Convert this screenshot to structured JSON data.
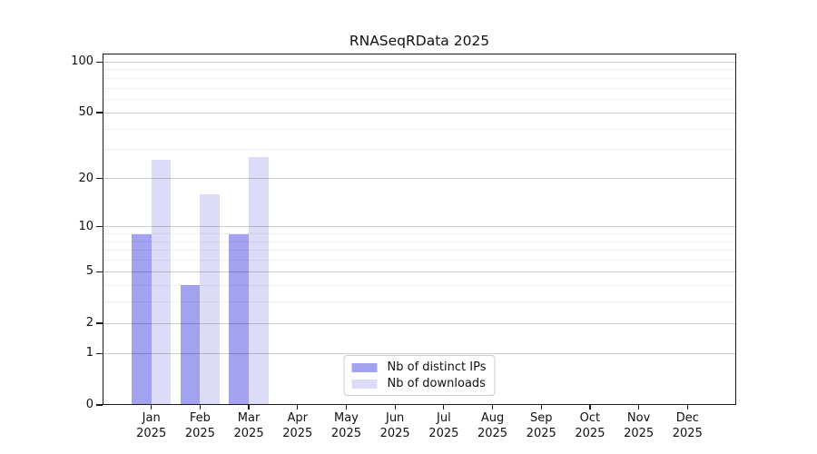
{
  "title": "RNASeqRData 2025",
  "chart_data": {
    "type": "bar",
    "title": "RNASeqRData 2025",
    "xlabel": "",
    "ylabel": "",
    "categories": [
      {
        "month": "Jan",
        "year": "2025"
      },
      {
        "month": "Feb",
        "year": "2025"
      },
      {
        "month": "Mar",
        "year": "2025"
      },
      {
        "month": "Apr",
        "year": "2025"
      },
      {
        "month": "May",
        "year": "2025"
      },
      {
        "month": "Jun",
        "year": "2025"
      },
      {
        "month": "Jul",
        "year": "2025"
      },
      {
        "month": "Aug",
        "year": "2025"
      },
      {
        "month": "Sep",
        "year": "2025"
      },
      {
        "month": "Oct",
        "year": "2025"
      },
      {
        "month": "Nov",
        "year": "2025"
      },
      {
        "month": "Dec",
        "year": "2025"
      }
    ],
    "series": [
      {
        "key": "distinct-ips",
        "name": "Nb of distinct IPs",
        "color": "#a2a2f0",
        "values": [
          9,
          4,
          9,
          0,
          0,
          0,
          0,
          0,
          0,
          0,
          0,
          0
        ]
      },
      {
        "key": "downloads",
        "name": "Nb of downloads",
        "color": "#dcdcf8",
        "values": [
          26,
          16,
          27,
          0,
          0,
          0,
          0,
          0,
          0,
          0,
          0,
          0
        ]
      }
    ],
    "y_axis": {
      "scale": "log1p",
      "ylim": [
        0,
        112
      ],
      "major_ticks": [
        0,
        1,
        2,
        5,
        10,
        20,
        50,
        100
      ],
      "minor_ticks": [
        3,
        4,
        6,
        7,
        8,
        9,
        30,
        40,
        60,
        70,
        80,
        90
      ]
    },
    "grid": true,
    "legend_position": "lower center"
  },
  "colors": {
    "background": "#ffffff",
    "spine": "#1a1a1a",
    "bar_distinct_ips": "#a2a2f0",
    "bar_downloads": "#dcdcf8"
  }
}
